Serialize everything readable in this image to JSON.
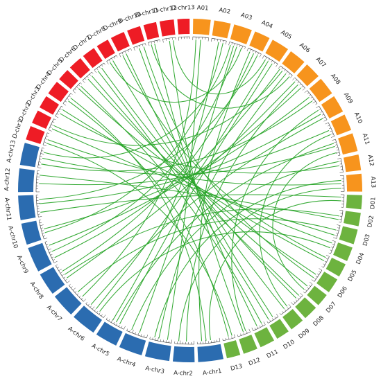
{
  "colors": {
    "D_group": "#ee1c25",
    "A_group": "#f7941d",
    "Dnum_group": "#6db33f",
    "Achr_group": "#2b6cb0",
    "link": "#2aa52a"
  },
  "chromosomes": [
    {
      "label": "A01",
      "group": "A_group"
    },
    {
      "label": "A02",
      "group": "A_group"
    },
    {
      "label": "A03",
      "group": "A_group"
    },
    {
      "label": "A04",
      "group": "A_group"
    },
    {
      "label": "A05",
      "group": "A_group"
    },
    {
      "label": "A06",
      "group": "A_group"
    },
    {
      "label": "A07",
      "group": "A_group"
    },
    {
      "label": "A08",
      "group": "A_group"
    },
    {
      "label": "A09",
      "group": "A_group"
    },
    {
      "label": "A10",
      "group": "A_group"
    },
    {
      "label": "A11",
      "group": "A_group"
    },
    {
      "label": "A12",
      "group": "A_group"
    },
    {
      "label": "A13",
      "group": "A_group"
    },
    {
      "label": "D01",
      "group": "Dnum_group"
    },
    {
      "label": "D02",
      "group": "Dnum_group"
    },
    {
      "label": "D03",
      "group": "Dnum_group"
    },
    {
      "label": "D04",
      "group": "Dnum_group"
    },
    {
      "label": "D05",
      "group": "Dnum_group"
    },
    {
      "label": "D06",
      "group": "Dnum_group"
    },
    {
      "label": "D07",
      "group": "Dnum_group"
    },
    {
      "label": "D08",
      "group": "Dnum_group"
    },
    {
      "label": "D09",
      "group": "Dnum_group"
    },
    {
      "label": "D10",
      "group": "Dnum_group"
    },
    {
      "label": "D11",
      "group": "Dnum_group"
    },
    {
      "label": "D12",
      "group": "Dnum_group"
    },
    {
      "label": "D13",
      "group": "Dnum_group"
    },
    {
      "label": "A-chr1",
      "group": "Achr_group"
    },
    {
      "label": "A-chr2",
      "group": "Achr_group"
    },
    {
      "label": "A-chr3",
      "group": "Achr_group"
    },
    {
      "label": "A-chr4",
      "group": "Achr_group"
    },
    {
      "label": "A-chr5",
      "group": "Achr_group"
    },
    {
      "label": "A-chr6",
      "group": "Achr_group"
    },
    {
      "label": "A-chr7",
      "group": "Achr_group"
    },
    {
      "label": "A-chr8",
      "group": "Achr_group"
    },
    {
      "label": "A-chr9",
      "group": "Achr_group"
    },
    {
      "label": "A-chr10",
      "group": "Achr_group"
    },
    {
      "label": "A-chr11",
      "group": "Achr_group"
    },
    {
      "label": "A-chr12",
      "group": "Achr_group"
    },
    {
      "label": "A-chr13",
      "group": "Achr_group"
    },
    {
      "label": "D-chr1",
      "group": "D_group"
    },
    {
      "label": "D-chr2",
      "group": "D_group"
    },
    {
      "label": "D-chr3",
      "group": "D_group"
    },
    {
      "label": "D-chr4",
      "group": "D_group"
    },
    {
      "label": "D-chr5",
      "group": "D_group"
    },
    {
      "label": "D-chr6",
      "group": "D_group"
    },
    {
      "label": "D-chr7",
      "group": "D_group"
    },
    {
      "label": "D-chr8",
      "group": "D_group"
    },
    {
      "label": "D-chr9",
      "group": "D_group"
    },
    {
      "label": "D-chr10",
      "group": "D_group"
    },
    {
      "label": "D-chr11",
      "group": "D_group"
    },
    {
      "label": "D-chr12",
      "group": "D_group"
    },
    {
      "label": "D-chr13",
      "group": "D_group"
    }
  ]
}
